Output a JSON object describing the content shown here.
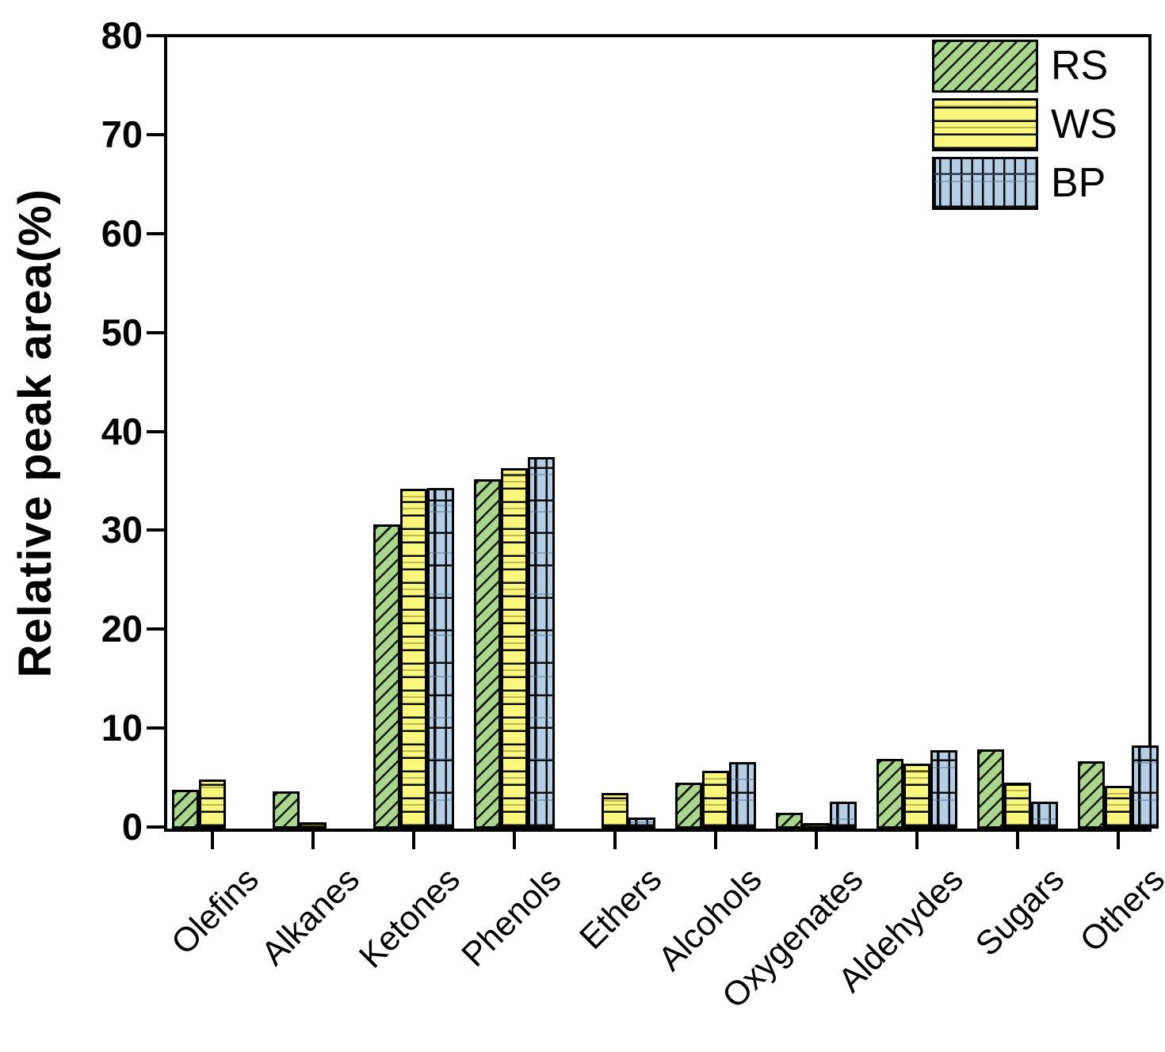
{
  "chart_data": {
    "type": "bar",
    "title": "",
    "xlabel": "",
    "ylabel": "Relative peak area(%)",
    "ylim": [
      0,
      80
    ],
    "yticks": [
      0,
      10,
      20,
      30,
      40,
      50,
      60,
      70,
      80
    ],
    "grid": false,
    "legend_position": "top-right",
    "categories": [
      "Olefins",
      "Alkanes",
      "Ketones",
      "Phenols",
      "Ethers",
      "Alcohols",
      "Oxygenates",
      "Aldehydes",
      "Sugars",
      "Others"
    ],
    "series": [
      {
        "name": "RS",
        "color": "#a9d58c",
        "pattern": "diagonal-hatch",
        "values": [
          3.7,
          3.5,
          30.5,
          35.1,
          0,
          4.4,
          1.4,
          6.8,
          7.8,
          6.6
        ]
      },
      {
        "name": "WS",
        "color": "#f9f77d",
        "pattern": "horizontal-lines",
        "values": [
          4.7,
          0.4,
          34.1,
          36.2,
          3.4,
          5.6,
          0.3,
          6.3,
          4.4,
          4.1
        ]
      },
      {
        "name": "BP",
        "color": "#b4cfe5",
        "pattern": "grid-plaid",
        "values": [
          0,
          0,
          34.2,
          37.3,
          0.9,
          6.5,
          2.5,
          7.7,
          2.5,
          8.2
        ]
      }
    ]
  }
}
